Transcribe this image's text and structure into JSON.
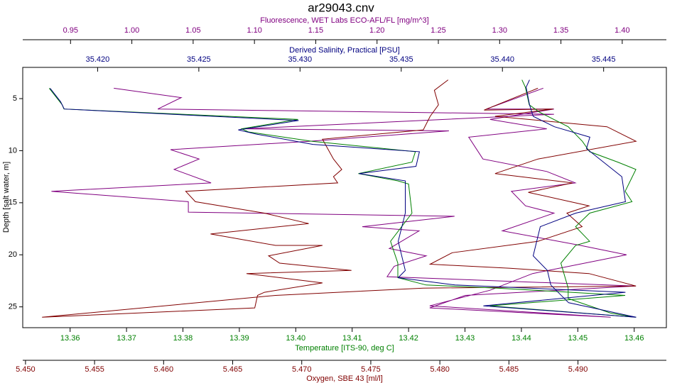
{
  "chart_data": {
    "type": "profile",
    "title": "ar29043.cnv",
    "ylabel": "Depth [salt water, m]",
    "ylim": [
      2,
      27
    ],
    "yticks": [
      5,
      10,
      15,
      20,
      25
    ],
    "y_inverted": true,
    "x_axes": [
      {
        "label": "Fluorescence, WET Labs ECO-AFL/FL [mg/m^3]",
        "color": "#800080",
        "side": "top",
        "xlim": [
          0.911,
          1.436
        ],
        "xticks": [
          0.95,
          {
            "value": 1,
            "label": "1.00"
          },
          1.05,
          {
            "value": 1.1,
            "label": "1.10"
          },
          1.15,
          {
            "value": 1.2,
            "label": "1.20"
          },
          1.25,
          {
            "value": 1.3,
            "label": "1.30"
          },
          1.35,
          {
            "value": 1.4,
            "label": "1.40"
          }
        ]
      },
      {
        "label": "Derived Salinity, Practical [PSU]",
        "color": "#000080",
        "side": "top",
        "xlim": [
          35.4163,
          35.4481
        ],
        "xticks": [
          {
            "value": 35.42,
            "label": "35.420"
          },
          35.425,
          {
            "value": 35.43,
            "label": "35.430"
          },
          35.435,
          {
            "value": 35.44,
            "label": "35.440"
          },
          35.445
        ]
      },
      {
        "label": "Temperature [ITS-90, deg C]",
        "color": "#008000",
        "side": "bottom",
        "xlim": [
          13.3516,
          13.4657
        ],
        "xticks": [
          13.36,
          13.37,
          13.38,
          13.39,
          {
            "value": 13.4,
            "label": "13.40"
          },
          13.41,
          13.42,
          13.43,
          13.44,
          13.45,
          13.46
        ]
      },
      {
        "label": "Oxygen, SBE 43 [ml/l]",
        "color": "#800000",
        "side": "bottom",
        "xlim": [
          5.4498,
          5.4964
        ],
        "xticks": [
          {
            "value": 5.45,
            "label": "5.450"
          },
          5.455,
          {
            "value": 5.46,
            "label": "5.460"
          },
          5.465,
          {
            "value": 5.47,
            "label": "5.470"
          },
          5.475,
          {
            "value": 5.48,
            "label": "5.480"
          },
          5.485,
          {
            "value": 5.49,
            "label": "5.490"
          }
        ]
      }
    ],
    "series": [
      {
        "x_axis": 0,
        "color": "#800080",
        "depth": [
          4.0,
          4.9,
          6.0,
          6.5,
          7.9,
          8.1,
          9.1,
          9.9,
          10.8,
          11.8,
          13.1,
          13.9,
          14.9,
          15.9,
          16.3,
          17.3,
          17.7,
          19.4,
          20.1,
          21.1,
          22.1,
          23.0,
          23.9,
          25.1,
          26.0,
          24.9,
          23.4,
          21.8,
          20.0,
          19.1,
          17.7,
          16.0,
          15.3,
          13.9,
          13.1,
          12.0,
          10.8,
          8.7,
          7.9,
          7.0,
          6.0,
          6.0,
          4.0
        ],
        "values": [
          0.9853,
          1.0403,
          1.0212,
          1.3443,
          1.0924,
          1.2586,
          1.1445,
          1.0316,
          1.0548,
          1.0345,
          1.0646,
          0.9344,
          1.0461,
          1.0461,
          1.2632,
          1.188,
          1.2343,
          1.21,
          1.2401,
          1.214,
          1.2082,
          1.4109,
          1.2719,
          1.243,
          1.3906,
          1.243,
          1.2922,
          1.3269,
          1.4035,
          1.3659,
          1.3022,
          1.3443,
          1.3211,
          1.3096,
          1.3617,
          1.3385,
          1.2864,
          1.2748,
          1.3385,
          1.2922,
          1.3443,
          1.2893,
          1.3356
        ]
      },
      {
        "x_axis": 3,
        "color": "#800000",
        "depth": [
          3.2,
          4.2,
          5.6,
          6.7,
          8.0,
          8.9,
          10.8,
          11.8,
          12.5,
          13.1,
          13.9,
          14.9,
          16.0,
          17.0,
          18.0,
          19.1,
          19.1,
          20.1,
          20.8,
          21.5,
          21.8,
          22.7,
          23.6,
          23.9,
          25.1,
          26.0,
          23.9,
          23.2,
          23.0,
          21.8,
          21.3,
          20.9,
          19.8,
          18.7,
          17.3,
          16.0,
          15.3,
          14.0,
          13.1,
          12.2,
          10.8,
          9.1,
          7.7,
          6.7,
          6.0,
          6.1,
          4.0
        ],
        "values": [
          5.4806,
          5.4796,
          5.4799,
          5.4793,
          5.4788,
          5.4715,
          5.4723,
          5.4729,
          5.4723,
          5.4726,
          5.4616,
          5.4623,
          5.4673,
          5.4705,
          5.4634,
          5.4681,
          5.4715,
          5.4676,
          5.4684,
          5.4736,
          5.466,
          5.4715,
          5.4673,
          5.4668,
          5.4666,
          5.4512,
          5.4681,
          5.4788,
          5.4942,
          5.4908,
          5.4851,
          5.4793,
          5.4809,
          5.4871,
          5.4903,
          5.4892,
          5.4908,
          5.4864,
          5.4896,
          5.484,
          5.4871,
          5.4942,
          5.4921,
          5.484,
          5.4882,
          5.4832,
          5.4871
        ]
      },
      {
        "x_axis": 2,
        "color": "#008000",
        "depth": [
          4.0,
          5.6,
          6.0,
          7.0,
          7.9,
          8.2,
          8.7,
          9.1,
          10.1,
          11.1,
          12.2,
          12.9,
          13.2,
          16.0,
          18.7,
          20.8,
          22.2,
          22.9,
          23.2,
          23.9,
          24.9,
          26.0,
          25.6,
          24.2,
          23.2,
          20.8,
          19.1,
          18.7,
          17.3,
          16.0,
          14.9,
          13.9,
          11.8,
          11.1,
          10.1,
          9.1,
          7.7,
          6.3,
          5.6,
          3.9,
          3.2
        ],
        "values": [
          13.3563,
          13.3586,
          13.3589,
          13.4004,
          13.3904,
          13.3916,
          13.3979,
          13.4029,
          13.4212,
          13.4206,
          13.4111,
          13.4181,
          13.42,
          13.4206,
          13.4168,
          13.4181,
          13.4181,
          13.4231,
          13.4357,
          13.4584,
          13.4344,
          13.4603,
          13.4558,
          13.4483,
          13.4483,
          13.447,
          13.4496,
          13.4521,
          13.4496,
          13.4521,
          13.4596,
          13.4584,
          13.4603,
          13.4571,
          13.4521,
          13.4508,
          13.4483,
          13.4432,
          13.4414,
          13.4407,
          13.4401
        ]
      },
      {
        "x_axis": 1,
        "color": "#000080",
        "depth": [
          4.0,
          5.3,
          6.0,
          7.1,
          8.0,
          8.4,
          9.4,
          10.1,
          11.5,
          12.2,
          12.9,
          14.2,
          16.0,
          18.7,
          21.5,
          22.2,
          22.9,
          23.6,
          24.9,
          26.0,
          24.6,
          22.9,
          21.5,
          20.1,
          17.3,
          16.0,
          14.9,
          12.5,
          9.8,
          8.7,
          7.7,
          6.7,
          5.6,
          3.9,
          3.2
        ],
        "values": [
          35.41765,
          35.41817,
          35.41835,
          35.42993,
          35.42695,
          35.42783,
          35.43064,
          35.4359,
          35.43573,
          35.43292,
          35.4352,
          35.4352,
          35.4352,
          35.43485,
          35.4352,
          35.43485,
          35.43766,
          35.44608,
          35.43906,
          35.44661,
          35.44327,
          35.44239,
          35.44222,
          35.44152,
          35.44187,
          35.44362,
          35.44608,
          35.4459,
          35.44415,
          35.44432,
          35.44257,
          35.44152,
          35.44134,
          35.44117,
          35.44134
        ]
      }
    ]
  }
}
